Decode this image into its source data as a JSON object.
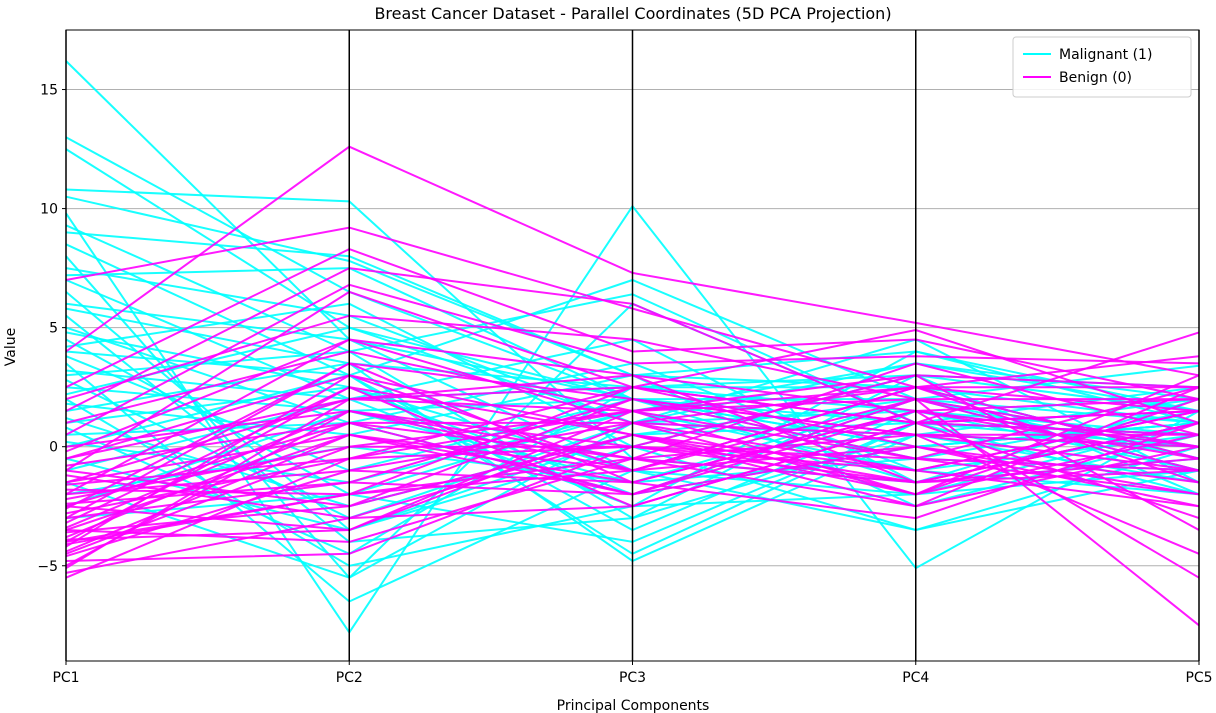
{
  "chart_data": {
    "type": "parallel-coordinates",
    "title": "Breast Cancer Dataset - Parallel Coordinates (5D PCA Projection)",
    "xlabel": "Principal Components",
    "ylabel": "Value",
    "categories": [
      "PC1",
      "PC2",
      "PC3",
      "PC4",
      "PC5"
    ],
    "ylim": [
      -9,
      17.5
    ],
    "yticks": [
      {
        "value": 15,
        "label": "15"
      },
      {
        "value": 10,
        "label": "10"
      },
      {
        "value": 5,
        "label": "5"
      },
      {
        "value": 0,
        "label": "0"
      },
      {
        "value": -5,
        "label": "−5"
      }
    ],
    "grid": "horizontal",
    "legend_position": "top-right",
    "series": [
      {
        "name": "Malignant (1)",
        "color": "#00ffff",
        "lines": [
          [
            16.2,
            4.5,
            2.0,
            1.0,
            0.5
          ],
          [
            13.0,
            6.5,
            2.0,
            -0.5,
            -1.0
          ],
          [
            12.5,
            5.0,
            1.0,
            3.5,
            2.0
          ],
          [
            10.8,
            10.3,
            -0.5,
            -1.5,
            1.0
          ],
          [
            10.5,
            7.8,
            3.0,
            2.5,
            1.0
          ],
          [
            9.8,
            -7.8,
            10.1,
            -5.1,
            1.5
          ],
          [
            9.3,
            4.0,
            6.4,
            1.0,
            0.0
          ],
          [
            9.0,
            8.0,
            3.0,
            4.0,
            1.5
          ],
          [
            8.5,
            3.0,
            7.0,
            2.0,
            3.4
          ],
          [
            8.0,
            -5.5,
            6.0,
            1.0,
            -2.0
          ],
          [
            7.5,
            5.5,
            1.0,
            4.5,
            -1.5
          ],
          [
            7.2,
            7.5,
            2.0,
            0.0,
            1.0
          ],
          [
            7.0,
            2.0,
            2.5,
            3.0,
            2.5
          ],
          [
            6.5,
            -3.5,
            0.5,
            2.0,
            0.0
          ],
          [
            6.0,
            4.5,
            -1.0,
            -2.0,
            1.0
          ],
          [
            5.8,
            3.5,
            2.5,
            1.5,
            -1.0
          ],
          [
            5.5,
            -4.0,
            -3.0,
            0.5,
            2.0
          ],
          [
            5.0,
            1.0,
            3.5,
            -1.0,
            0.5
          ],
          [
            4.8,
            2.5,
            -2.0,
            2.0,
            -0.5
          ],
          [
            4.5,
            -2.0,
            1.5,
            3.5,
            1.5
          ],
          [
            4.2,
            6.0,
            0.0,
            -3.5,
            -1.0
          ],
          [
            4.0,
            3.0,
            -4.5,
            1.0,
            0.5
          ],
          [
            3.8,
            -1.0,
            2.0,
            0.0,
            1.0
          ],
          [
            3.5,
            -6.5,
            -1.0,
            2.5,
            -0.5
          ],
          [
            3.2,
            2.0,
            4.5,
            -1.5,
            2.0
          ],
          [
            3.0,
            4.0,
            -3.0,
            3.0,
            -2.0
          ],
          [
            2.8,
            -3.0,
            1.0,
            1.5,
            0.0
          ],
          [
            2.5,
            1.5,
            -1.5,
            -0.5,
            1.5
          ],
          [
            2.2,
            5.0,
            2.0,
            2.0,
            -1.0
          ],
          [
            2.0,
            -5.0,
            -2.5,
            4.0,
            1.0
          ],
          [
            1.8,
            0.5,
            3.0,
            -2.5,
            0.5
          ],
          [
            1.5,
            3.5,
            -4.8,
            0.5,
            -1.5
          ],
          [
            1.2,
            -2.5,
            0.5,
            1.0,
            2.5
          ],
          [
            1.0,
            2.5,
            -1.0,
            -3.5,
            0.0
          ],
          [
            0.8,
            -4.5,
            2.5,
            2.5,
            -0.5
          ],
          [
            0.5,
            1.0,
            -2.0,
            0.0,
            1.0
          ],
          [
            0.2,
            -1.5,
            1.5,
            -1.0,
            -2.0
          ],
          [
            0.0,
            3.0,
            -3.5,
            1.5,
            0.5
          ],
          [
            -0.5,
            -3.5,
            0.0,
            3.0,
            1.5
          ],
          [
            -1.0,
            2.0,
            -2.5,
            -2.0,
            -1.0
          ],
          [
            -1.5,
            -5.5,
            1.0,
            0.5,
            0.0
          ],
          [
            -2.0,
            0.0,
            -1.5,
            2.0,
            1.0
          ],
          [
            -2.5,
            1.5,
            2.0,
            -1.5,
            -0.5
          ],
          [
            -3.0,
            -2.0,
            -4.0,
            1.0,
            0.5
          ]
        ]
      },
      {
        "name": "Benign (0)",
        "color": "#ff00ff",
        "lines": [
          [
            4.0,
            12.6,
            7.3,
            5.2,
            3.0
          ],
          [
            7.0,
            9.2,
            5.8,
            2.5,
            1.5
          ],
          [
            2.5,
            8.3,
            4.0,
            4.5,
            2.0
          ],
          [
            1.5,
            7.5,
            6.0,
            1.0,
            4.8
          ],
          [
            0.5,
            6.8,
            3.5,
            3.8,
            3.5
          ],
          [
            -1.0,
            6.5,
            2.5,
            4.9,
            1.0
          ],
          [
            2.0,
            5.5,
            4.5,
            2.0,
            -7.5
          ],
          [
            -2.0,
            4.5,
            3.0,
            1.5,
            -5.5
          ],
          [
            1.0,
            4.0,
            1.5,
            3.0,
            2.5
          ],
          [
            -3.0,
            3.5,
            2.0,
            0.5,
            -4.5
          ],
          [
            -0.5,
            3.0,
            -1.0,
            2.5,
            3.8
          ],
          [
            -4.0,
            2.5,
            0.5,
            -1.0,
            1.5
          ],
          [
            -1.5,
            2.0,
            2.5,
            1.0,
            -3.0
          ],
          [
            -5.0,
            1.5,
            -0.5,
            3.5,
            0.5
          ],
          [
            -2.5,
            1.0,
            1.0,
            -2.0,
            2.0
          ],
          [
            -3.5,
            0.5,
            -2.0,
            0.0,
            -2.0
          ],
          [
            -4.5,
            0.0,
            1.5,
            2.0,
            -1.0
          ],
          [
            -5.5,
            -0.5,
            0.0,
            -1.5,
            1.0
          ],
          [
            -2.0,
            -1.0,
            -1.5,
            1.5,
            -0.5
          ],
          [
            -3.0,
            -1.5,
            2.0,
            -0.5,
            2.5
          ],
          [
            -4.0,
            -2.0,
            -1.0,
            2.5,
            -1.5
          ],
          [
            -1.0,
            -2.5,
            0.5,
            -2.5,
            0.0
          ],
          [
            -5.3,
            -3.0,
            -2.5,
            1.0,
            1.5
          ],
          [
            -2.5,
            -3.5,
            1.0,
            -1.0,
            -2.5
          ],
          [
            -3.5,
            -4.0,
            -0.5,
            0.5,
            0.5
          ],
          [
            -4.8,
            -4.5,
            0.0,
            3.0,
            -3.5
          ],
          [
            -1.5,
            0.5,
            -1.5,
            -3.0,
            1.0
          ],
          [
            -0.5,
            2.0,
            3.0,
            -1.5,
            -1.0
          ],
          [
            -3.8,
            1.0,
            -2.0,
            1.5,
            2.0
          ],
          [
            -2.8,
            -0.5,
            1.5,
            -0.5,
            -2.0
          ],
          [
            0.0,
            1.5,
            -1.0,
            2.0,
            0.0
          ],
          [
            -4.2,
            3.0,
            0.5,
            -2.0,
            3.0
          ],
          [
            -1.8,
            -2.0,
            2.5,
            0.0,
            -1.5
          ],
          [
            -3.2,
            2.5,
            -2.5,
            1.0,
            0.5
          ],
          [
            -2.2,
            0.0,
            0.0,
            -1.0,
            1.5
          ],
          [
            -4.6,
            -1.0,
            1.0,
            2.5,
            -0.5
          ],
          [
            -0.8,
            1.0,
            -0.5,
            -2.5,
            2.5
          ],
          [
            -3.6,
            -2.5,
            2.0,
            0.5,
            -1.0
          ],
          [
            -2.6,
            3.5,
            -1.5,
            1.5,
            0.0
          ],
          [
            -1.2,
            -3.0,
            0.5,
            -1.5,
            1.0
          ],
          [
            -4.4,
            0.5,
            -1.0,
            0.0,
            -2.5
          ],
          [
            -5.1,
            2.0,
            1.5,
            -2.0,
            0.5
          ],
          [
            -2.4,
            -1.5,
            -2.0,
            2.0,
            2.0
          ],
          [
            -3.4,
            1.5,
            0.0,
            -0.5,
            -1.0
          ],
          [
            -1.6,
            -0.5,
            2.5,
            1.0,
            1.5
          ],
          [
            -4.1,
            -2.0,
            -0.5,
            -1.5,
            -0.5
          ],
          [
            -0.2,
            4.5,
            1.0,
            0.5,
            0.0
          ],
          [
            -3.9,
            -3.5,
            1.5,
            2.5,
            2.5
          ]
        ]
      }
    ]
  }
}
